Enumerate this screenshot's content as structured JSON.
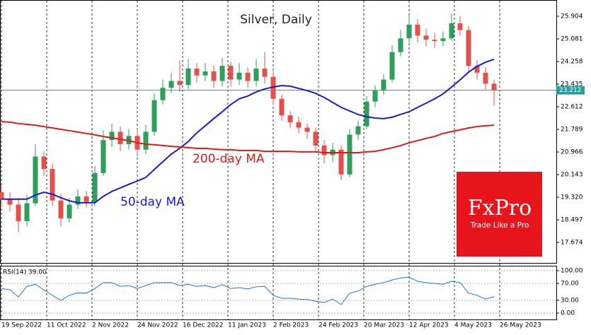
{
  "chart_data": [
    {
      "type": "candlestick",
      "title": "Silver, Daily",
      "x": [
        0,
        3,
        6,
        9,
        12,
        15,
        18,
        21,
        24,
        27,
        30,
        33,
        36,
        39,
        42,
        45,
        48,
        51,
        54,
        57,
        60,
        63,
        66,
        69,
        72,
        75,
        78,
        81,
        84,
        87,
        90,
        93,
        96,
        99,
        102,
        105,
        108,
        111,
        114,
        117,
        120,
        123,
        126,
        129,
        132,
        135,
        138,
        141,
        144,
        147,
        150,
        153,
        156,
        159,
        162,
        165,
        168,
        171,
        174
      ],
      "open": [
        19.5,
        19.25,
        19.05,
        18.45,
        19.1,
        20.8,
        20.35,
        19.2,
        18.55,
        19.05,
        19.35,
        19.15,
        20.2,
        21.4,
        21.7,
        21.25,
        21.55,
        21.05,
        21.7,
        22.85,
        23.3,
        23.55,
        23.4,
        24.0,
        23.75,
        23.9,
        23.55,
        24.1,
        23.6,
        23.85,
        23.55,
        24.0,
        23.7,
        22.9,
        22.3,
        22.05,
        21.85,
        21.7,
        21.2,
        20.85,
        21.05,
        20.15,
        21.6,
        21.9,
        22.8,
        23.2,
        23.6,
        24.6,
        25.1,
        25.6,
        25.2,
        25.05,
        25.0,
        25.1,
        25.65,
        25.4,
        24.1,
        23.85,
        23.45
      ],
      "high": [
        19.75,
        19.5,
        19.3,
        19.4,
        21.25,
        21.0,
        20.55,
        19.45,
        19.3,
        19.6,
        19.55,
        20.45,
        21.75,
        22.0,
        21.9,
        21.8,
        21.75,
        21.95,
        23.1,
        23.6,
        23.85,
        24.3,
        24.35,
        24.2,
        24.2,
        24.1,
        24.4,
        24.25,
        24.2,
        24.05,
        24.35,
        24.6,
        23.9,
        23.05,
        22.45,
        22.25,
        22.0,
        21.85,
        21.4,
        21.3,
        21.2,
        21.8,
        22.1,
        23.0,
        23.4,
        23.8,
        24.85,
        25.4,
        25.95,
        25.8,
        25.45,
        25.3,
        25.35,
        26.0,
        25.9,
        25.55,
        24.3,
        24.05,
        23.6
      ],
      "low": [
        18.95,
        18.8,
        18.05,
        18.25,
        19.0,
        20.1,
        19.0,
        18.25,
        18.4,
        18.9,
        18.95,
        19.0,
        20.1,
        21.15,
        21.0,
        21.05,
        20.8,
        20.9,
        21.55,
        22.7,
        23.1,
        23.15,
        23.25,
        23.5,
        23.55,
        23.3,
        23.35,
        23.35,
        23.4,
        23.3,
        23.35,
        23.45,
        22.7,
        22.1,
        21.85,
        21.65,
        21.45,
        20.95,
        20.55,
        20.6,
        19.95,
        20.05,
        21.4,
        21.8,
        22.6,
        23.05,
        23.5,
        24.45,
        24.95,
        24.95,
        24.8,
        24.75,
        24.8,
        25.0,
        25.2,
        23.9,
        23.6,
        23.2,
        22.65
      ],
      "close": [
        19.25,
        19.05,
        18.45,
        19.1,
        20.8,
        20.35,
        19.2,
        18.55,
        19.05,
        19.35,
        19.15,
        20.2,
        21.4,
        21.7,
        21.25,
        21.55,
        21.05,
        21.7,
        22.85,
        23.3,
        23.55,
        23.4,
        24.0,
        23.75,
        23.9,
        23.55,
        24.1,
        23.6,
        23.85,
        23.55,
        24.0,
        23.7,
        22.9,
        22.3,
        22.05,
        21.85,
        21.7,
        21.2,
        20.85,
        21.05,
        20.15,
        21.6,
        21.9,
        22.8,
        23.2,
        23.6,
        24.6,
        25.1,
        25.6,
        25.2,
        25.05,
        25.0,
        25.1,
        25.65,
        25.4,
        24.1,
        23.85,
        23.45,
        23.21
      ],
      "up_color": "#2e9e5b",
      "down_color": "#e4504a",
      "series": [
        {
          "name": "50-day MA",
          "color": "#1c1ccf",
          "values": [
            19.25,
            19.25,
            19.25,
            19.25,
            19.4,
            19.5,
            19.43,
            19.3,
            19.19,
            19.12,
            19.12,
            19.12,
            19.35,
            19.53,
            19.66,
            19.79,
            19.91,
            20.04,
            20.33,
            20.61,
            20.89,
            21.1,
            21.35,
            21.66,
            21.92,
            22.18,
            22.43,
            22.69,
            22.9,
            23.0,
            23.15,
            23.26,
            23.33,
            23.38,
            23.36,
            23.28,
            23.2,
            23.1,
            22.95,
            22.77,
            22.59,
            22.46,
            22.33,
            22.25,
            22.2,
            22.18,
            22.23,
            22.33,
            22.43,
            22.59,
            22.74,
            22.9,
            23.08,
            23.33,
            23.59,
            23.87,
            24.08,
            24.23,
            24.34
          ]
        },
        {
          "name": "200-day MA",
          "color": "#e01a1a",
          "values": [
            22.07,
            22.05,
            22.0,
            21.97,
            21.94,
            21.89,
            21.84,
            21.79,
            21.74,
            21.69,
            21.64,
            21.59,
            21.53,
            21.48,
            21.43,
            21.38,
            21.3,
            21.25,
            21.23,
            21.2,
            21.17,
            21.15,
            21.12,
            21.1,
            21.1,
            21.07,
            21.05,
            21.05,
            21.02,
            21.02,
            21.02,
            20.99,
            20.99,
            20.99,
            20.99,
            20.97,
            20.97,
            20.97,
            20.94,
            20.94,
            20.94,
            20.94,
            20.94,
            20.97,
            20.99,
            21.05,
            21.12,
            21.2,
            21.3,
            21.38,
            21.46,
            21.53,
            21.64,
            21.71,
            21.77,
            21.84,
            21.89,
            21.92,
            21.94
          ]
        }
      ],
      "current_price": {
        "value": 23.212,
        "label": "23.212",
        "color": "#2a9d9a"
      },
      "xlim": [
        -0.5,
        196
      ],
      "ylim": [
        16.93,
        26.495
      ],
      "yticks": [
        25.904,
        25.081,
        24.258,
        23.435,
        22.612,
        21.789,
        20.966,
        20.143,
        {
          "value": 19.32,
          "label": "19.320"
        },
        18.497,
        17.674
      ],
      "xticks": [
        {
          "value": 0,
          "label": "19 Sep 2022"
        },
        {
          "value": 16,
          "label": "11 Oct 2022"
        },
        {
          "value": 32,
          "label": "2 Nov 2022"
        },
        {
          "value": 48,
          "label": "24 Nov 2022"
        },
        {
          "value": 64,
          "label": "16 Dec 2022"
        },
        {
          "value": 80,
          "label": "11 Jan 2023"
        },
        {
          "value": 96,
          "label": "2 Feb 2023"
        },
        {
          "value": 112,
          "label": "24 Feb 2023"
        },
        {
          "value": 128,
          "label": "20 Mar 2023"
        },
        {
          "value": 144,
          "label": "12 Apr 2023"
        },
        {
          "value": 160,
          "label": "4 May 2023"
        },
        {
          "value": 176,
          "label": "26 May 2023"
        }
      ],
      "grid": true
    },
    {
      "type": "line",
      "title": "RSI(14) 39.00",
      "color": "#1f77d4",
      "x": [
        0,
        3,
        6,
        9,
        12,
        15,
        18,
        21,
        24,
        27,
        30,
        33,
        36,
        39,
        42,
        45,
        48,
        51,
        54,
        57,
        60,
        63,
        66,
        69,
        72,
        75,
        78,
        81,
        84,
        87,
        90,
        93,
        96,
        99,
        102,
        105,
        108,
        111,
        114,
        117,
        120,
        123,
        126,
        129,
        132,
        135,
        138,
        141,
        144,
        147,
        150,
        153,
        156,
        159,
        162,
        165,
        168,
        171,
        174
      ],
      "values": [
        58,
        55,
        38,
        63,
        68,
        55,
        42,
        30,
        42,
        48,
        47,
        58,
        72,
        72,
        63,
        65,
        58,
        65,
        72,
        72,
        72,
        65,
        68,
        63,
        65,
        60,
        67,
        58,
        60,
        57,
        62,
        63,
        42,
        35,
        35,
        33,
        32,
        28,
        25,
        33,
        20,
        47,
        52,
        63,
        68,
        72,
        78,
        83,
        85,
        75,
        72,
        70,
        68,
        75,
        72,
        47,
        42,
        33,
        39
      ],
      "xlim": [
        -0.5,
        196
      ],
      "ylim": [
        -15,
        111.7
      ],
      "yticks": [
        {
          "value": 100,
          "label": "100.00"
        },
        {
          "value": 70,
          "label": "70.00"
        },
        {
          "value": 30,
          "label": "30.00"
        },
        {
          "value": 0,
          "label": "0.00"
        }
      ],
      "grid": true
    }
  ],
  "logo": {
    "brand": "FxPro",
    "tagline": "Trade Like a Pro",
    "color": "#e8141c"
  }
}
